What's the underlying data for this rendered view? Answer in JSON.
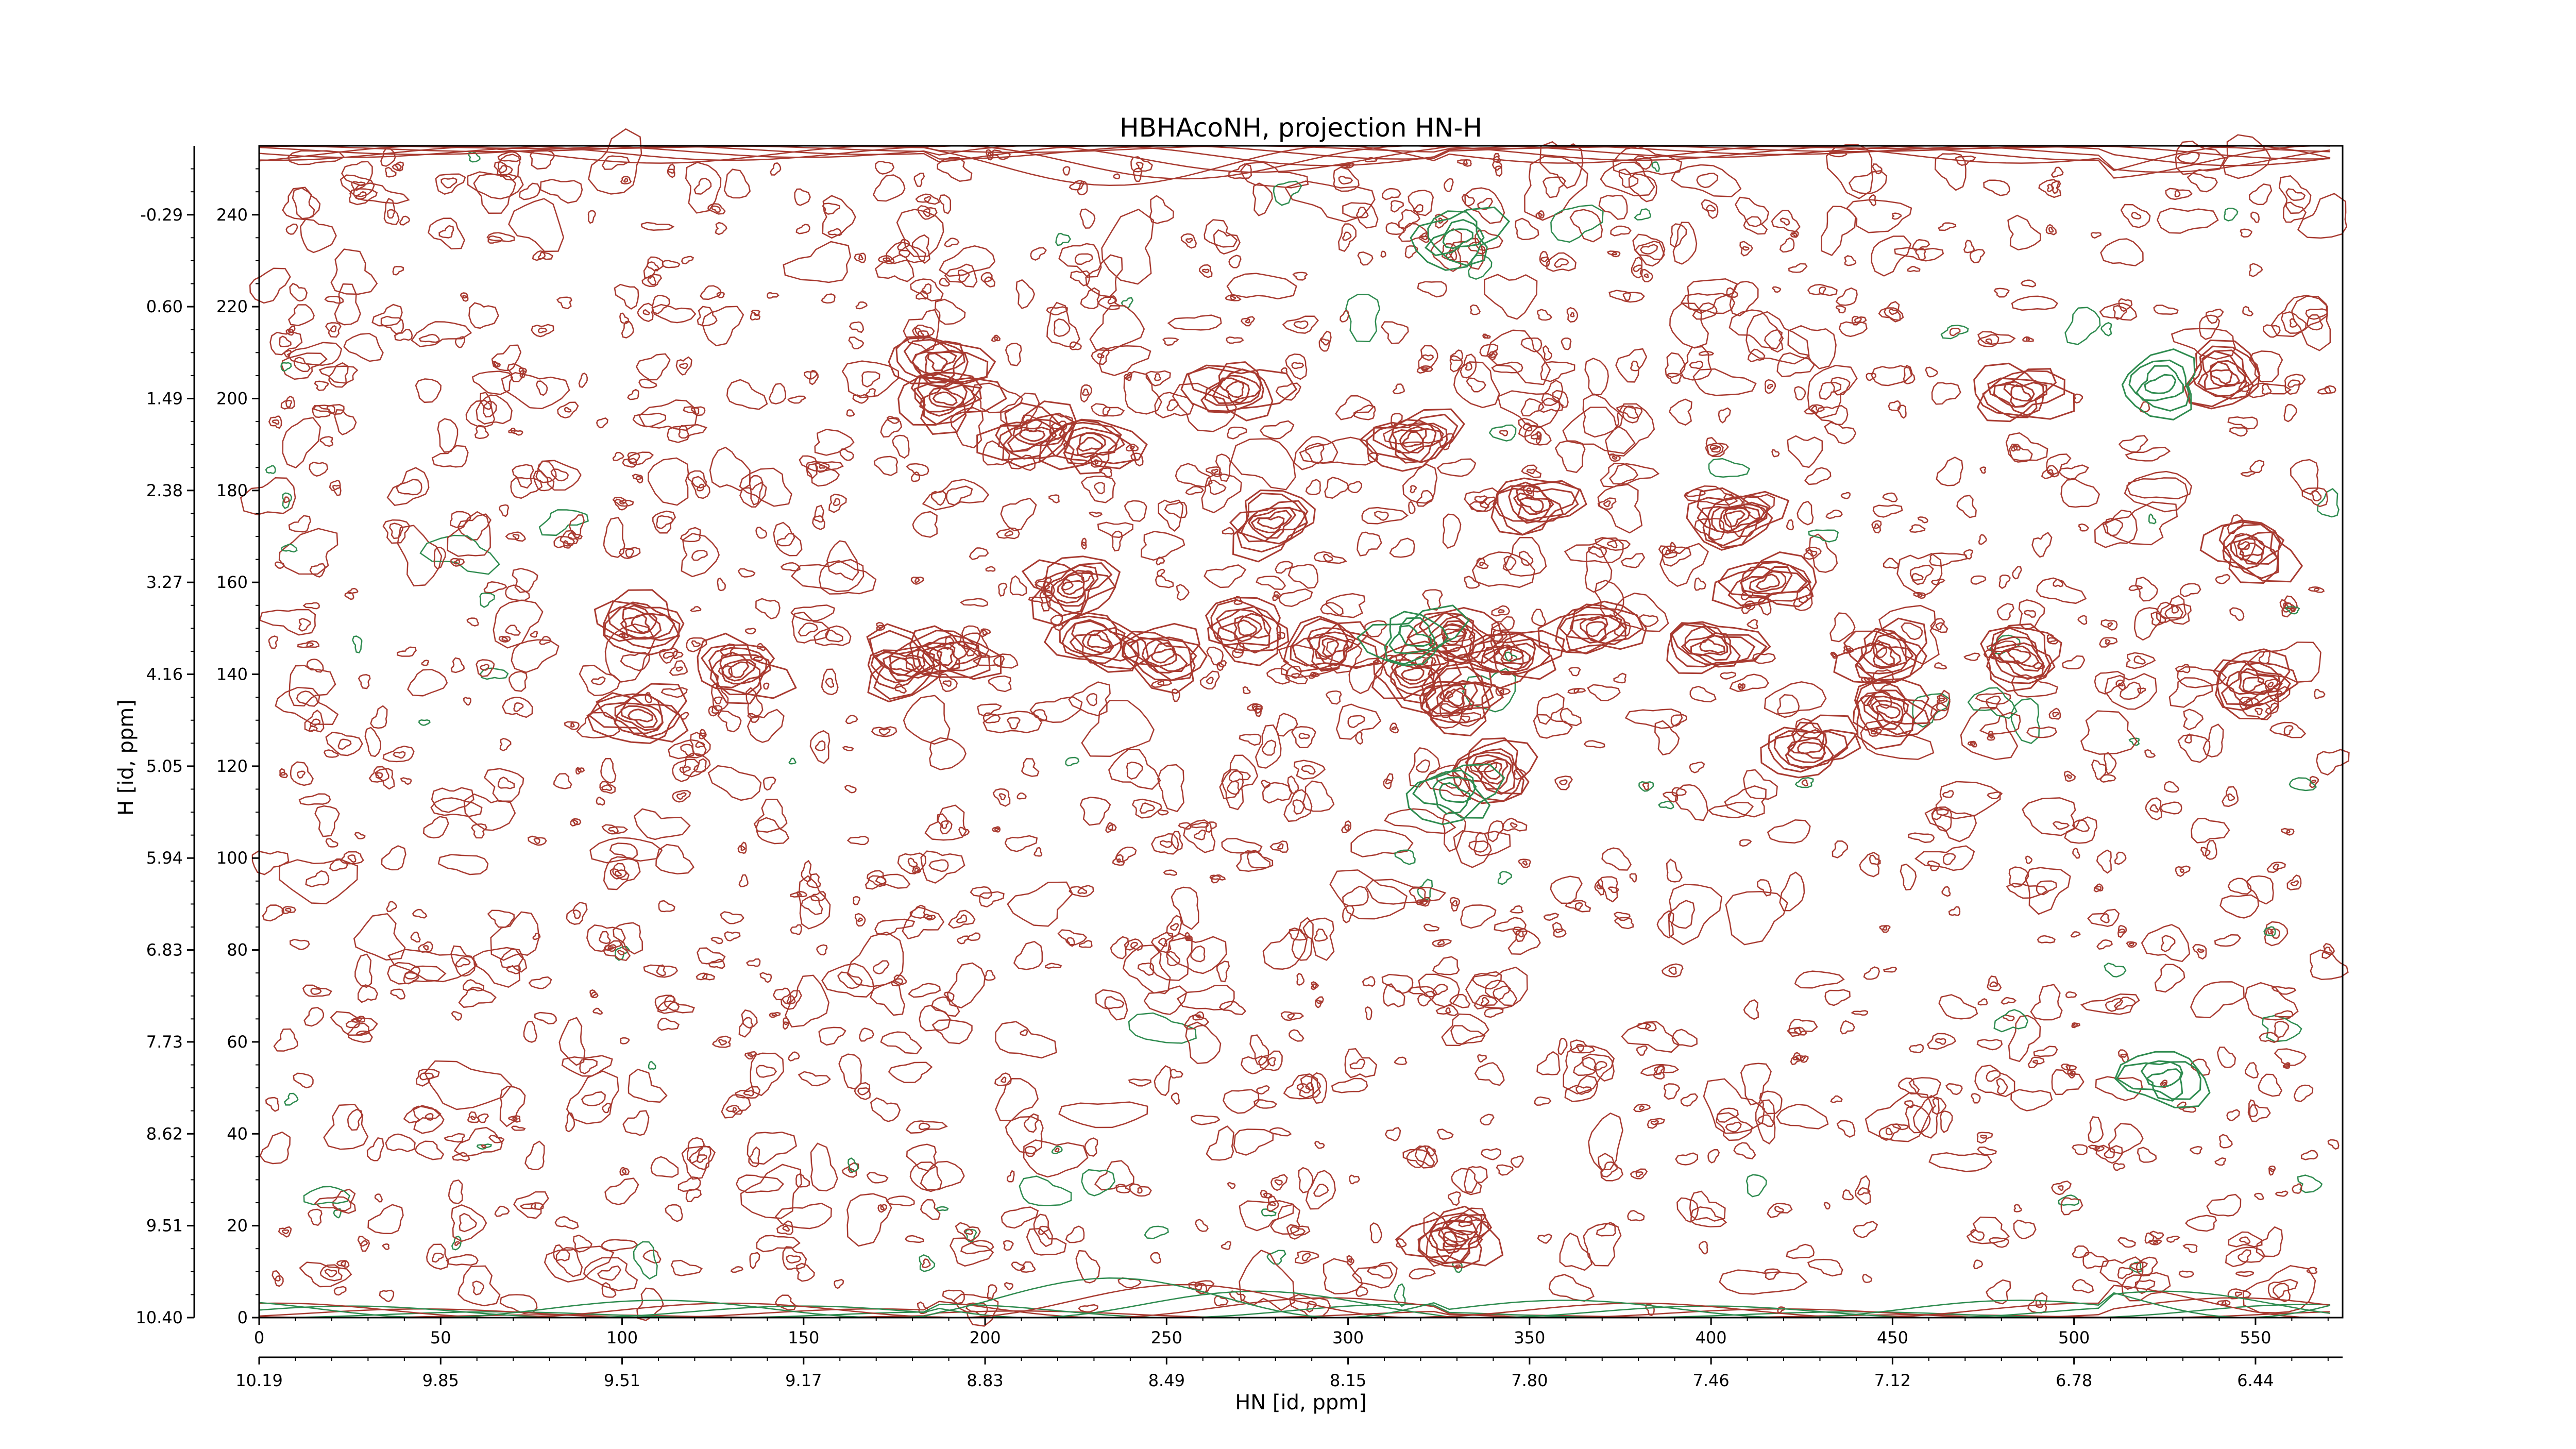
{
  "chart_data": {
    "type": "contour",
    "title": "HBHAcoNH, projection HN-H",
    "xlabel": "HN [id, ppm]",
    "ylabel": "H [id, ppm]",
    "xlim": [
      0,
      574
    ],
    "ylim": [
      0,
      255
    ],
    "x_index_ticks": [
      "0",
      "50",
      "100",
      "150",
      "200",
      "250",
      "300",
      "350",
      "400",
      "450",
      "500",
      "550"
    ],
    "x_index_tick_values": [
      0,
      50,
      100,
      150,
      200,
      250,
      300,
      350,
      400,
      450,
      500,
      550
    ],
    "x_ppm_ticks": [
      "10.19",
      "9.85",
      "9.51",
      "9.17",
      "8.83",
      "8.49",
      "8.15",
      "7.80",
      "7.46",
      "7.12",
      "6.78",
      "6.44"
    ],
    "y_index_ticks": [
      "0",
      "20",
      "40",
      "60",
      "80",
      "100",
      "120",
      "140",
      "160",
      "180",
      "200",
      "220",
      "240"
    ],
    "y_index_tick_values": [
      0,
      20,
      40,
      60,
      80,
      100,
      120,
      140,
      160,
      180,
      200,
      220,
      240
    ],
    "y_ppm_ticks": [
      "10.40",
      "9.51",
      "8.62",
      "7.73",
      "6.83",
      "5.94",
      "5.05",
      "4.16",
      "3.27",
      "2.38",
      "1.49",
      "0.60",
      "-0.29"
    ],
    "grid": false,
    "colors": {
      "positive": "#a83a30",
      "negative": "#2e8b4f"
    },
    "peaks": [
      {
        "x": 187,
        "y": 208,
        "sign": "pos"
      },
      {
        "x": 189,
        "y": 200,
        "sign": "pos"
      },
      {
        "x": 213,
        "y": 192,
        "sign": "pos"
      },
      {
        "x": 229,
        "y": 190,
        "sign": "pos"
      },
      {
        "x": 269,
        "y": 202,
        "sign": "pos"
      },
      {
        "x": 318,
        "y": 191,
        "sign": "pos"
      },
      {
        "x": 351,
        "y": 177,
        "sign": "pos"
      },
      {
        "x": 279,
        "y": 173,
        "sign": "pos"
      },
      {
        "x": 406,
        "y": 174,
        "sign": "pos"
      },
      {
        "x": 485,
        "y": 201,
        "sign": "pos"
      },
      {
        "x": 541,
        "y": 205,
        "sign": "pos"
      },
      {
        "x": 105,
        "y": 151,
        "sign": "pos"
      },
      {
        "x": 132,
        "y": 141,
        "sign": "pos"
      },
      {
        "x": 105,
        "y": 131,
        "sign": "pos"
      },
      {
        "x": 177,
        "y": 142,
        "sign": "pos"
      },
      {
        "x": 189,
        "y": 144,
        "sign": "pos"
      },
      {
        "x": 231,
        "y": 147,
        "sign": "pos"
      },
      {
        "x": 249,
        "y": 144,
        "sign": "pos"
      },
      {
        "x": 272,
        "y": 150,
        "sign": "pos"
      },
      {
        "x": 295,
        "y": 146,
        "sign": "pos"
      },
      {
        "x": 329,
        "y": 148,
        "sign": "pos"
      },
      {
        "x": 318,
        "y": 140,
        "sign": "pos"
      },
      {
        "x": 330,
        "y": 135,
        "sign": "pos"
      },
      {
        "x": 345,
        "y": 144,
        "sign": "pos"
      },
      {
        "x": 368,
        "y": 150,
        "sign": "pos"
      },
      {
        "x": 400,
        "y": 146,
        "sign": "pos"
      },
      {
        "x": 448,
        "y": 144,
        "sign": "pos"
      },
      {
        "x": 485,
        "y": 144,
        "sign": "pos"
      },
      {
        "x": 449,
        "y": 132,
        "sign": "pos"
      },
      {
        "x": 549,
        "y": 138,
        "sign": "pos"
      },
      {
        "x": 549,
        "y": 167,
        "sign": "pos"
      },
      {
        "x": 340,
        "y": 119,
        "sign": "pos"
      },
      {
        "x": 427,
        "y": 124,
        "sign": "pos"
      },
      {
        "x": 224,
        "y": 159,
        "sign": "pos"
      },
      {
        "x": 416,
        "y": 160,
        "sign": "pos"
      },
      {
        "x": 329,
        "y": 17,
        "sign": "pos"
      },
      {
        "x": 330,
        "y": 235,
        "sign": "neg"
      },
      {
        "x": 318,
        "y": 148,
        "sign": "neg"
      },
      {
        "x": 329,
        "y": 114,
        "sign": "neg"
      },
      {
        "x": 525,
        "y": 52,
        "sign": "neg"
      },
      {
        "x": 524,
        "y": 203,
        "sign": "neg"
      }
    ]
  }
}
